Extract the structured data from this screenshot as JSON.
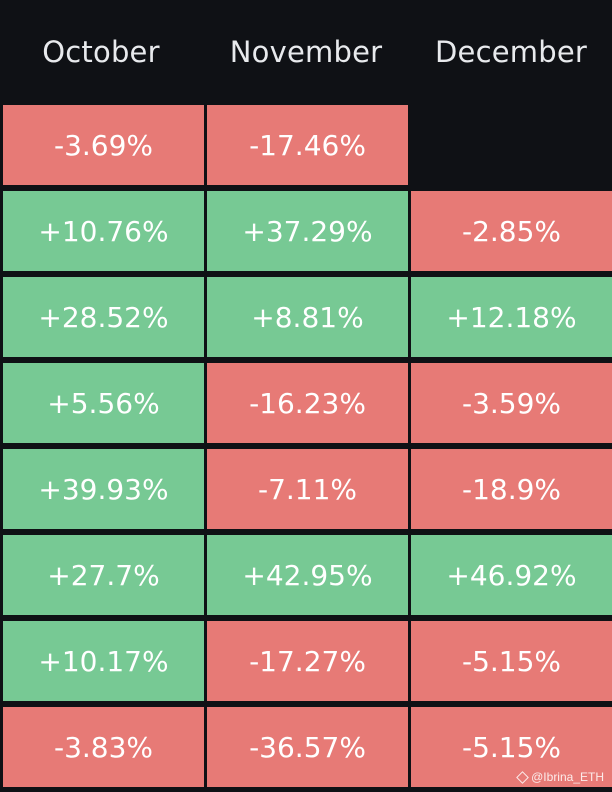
{
  "chart_data": {
    "type": "table",
    "columns": [
      "October",
      "November",
      "December"
    ],
    "rows": [
      [
        "-3.69%",
        "-17.46%",
        ""
      ],
      [
        "+10.76%",
        "+37.29%",
        "-2.85%"
      ],
      [
        "+28.52%",
        "+8.81%",
        "+12.18%"
      ],
      [
        "+5.56%",
        "-16.23%",
        "-3.59%"
      ],
      [
        "+39.93%",
        "-7.11%",
        "-18.9%"
      ],
      [
        "+27.7%",
        "+42.95%",
        "+46.92%"
      ],
      [
        "+10.17%",
        "-17.27%",
        "-5.15%"
      ],
      [
        "-3.83%",
        "-36.57%",
        "-5.15%"
      ]
    ]
  },
  "colors": {
    "background": "#0f1115",
    "positive": "#77c994",
    "negative": "#e77a76",
    "header_text": "#e8eaed",
    "cell_text": "#ffffff"
  },
  "watermark": {
    "text": "@Ibrina_ETH",
    "icon": "binance-diamond-icon"
  }
}
